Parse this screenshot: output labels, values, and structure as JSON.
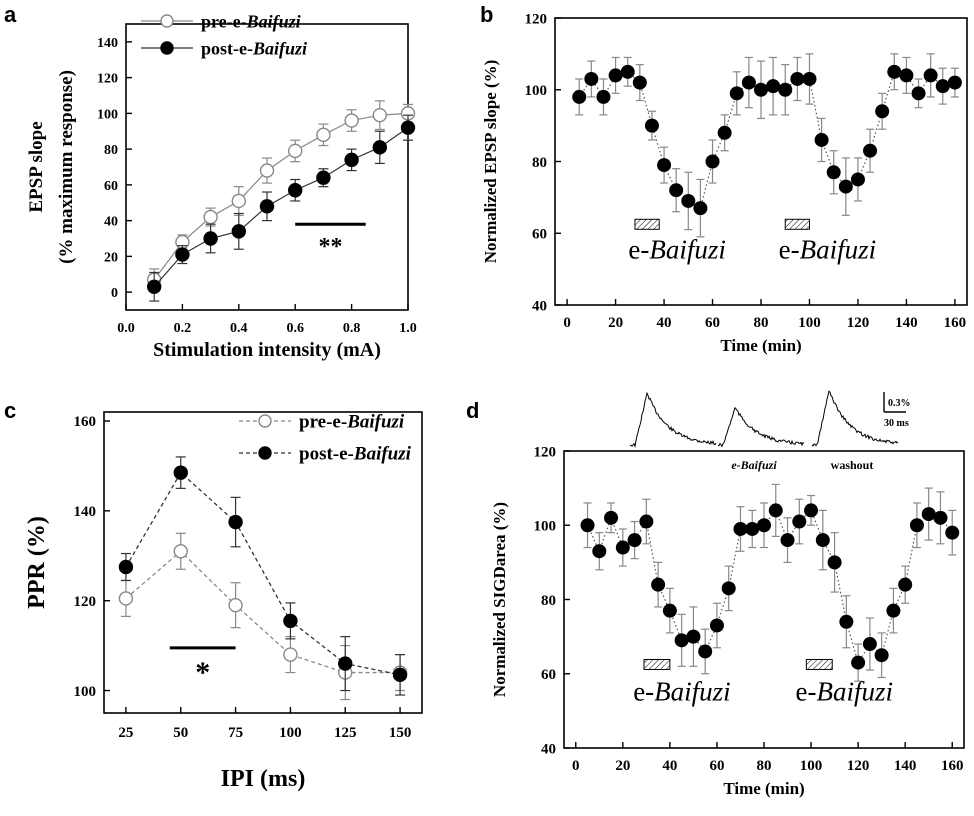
{
  "chart_data": [
    {
      "panel": "a",
      "type": "line",
      "xlabel": "Stimulation intensity (mA)",
      "ylabel_line1": "EPSP slope",
      "ylabel_line2": "(% maximum response)",
      "xlim": [
        0.0,
        1.0
      ],
      "ylim": [
        -10,
        150
      ],
      "xticks": [
        "0.0",
        "0.2",
        "0.4",
        "0.6",
        "0.8",
        "1.0"
      ],
      "xtick_values": [
        0.0,
        0.2,
        0.4,
        0.6,
        0.8,
        1.0
      ],
      "yticks": [
        "0",
        "20",
        "40",
        "60",
        "80",
        "100",
        "120",
        "140"
      ],
      "ytick_values": [
        0,
        20,
        40,
        60,
        80,
        100,
        120,
        140
      ],
      "legend_placement": "top-left",
      "annotation": "**",
      "x": [
        0.1,
        0.2,
        0.3,
        0.4,
        0.5,
        0.6,
        0.7,
        0.8,
        0.9,
        1.0
      ],
      "series": [
        {
          "name_prefix": "pre-e-",
          "name_italic": "Baifuzi",
          "marker": "open",
          "values": [
            7,
            28,
            42,
            51,
            68,
            79,
            88,
            96,
            99,
            100
          ],
          "errors": [
            6,
            4,
            5,
            8,
            7,
            6,
            6,
            6,
            8,
            5
          ]
        },
        {
          "name_prefix": "post-e-",
          "name_italic": "Baifuzi",
          "marker": "filled",
          "values": [
            3,
            21,
            30,
            34,
            48,
            57,
            64,
            74,
            81,
            92
          ],
          "errors": [
            8,
            5,
            8,
            10,
            8,
            6,
            5,
            6,
            9,
            7
          ]
        }
      ]
    },
    {
      "panel": "b",
      "type": "scatter",
      "xlabel": "Time (min)",
      "ylabel": "Normalized EPSP slope (%)",
      "xlim": [
        -5,
        165
      ],
      "ylim": [
        40,
        120
      ],
      "xticks": [
        "0",
        "20",
        "40",
        "60",
        "80",
        "100",
        "120",
        "140",
        "160"
      ],
      "xtick_values": [
        0,
        20,
        40,
        60,
        80,
        100,
        120,
        140,
        160
      ],
      "yticks": [
        "40",
        "60",
        "80",
        "100",
        "120"
      ],
      "ytick_values": [
        40,
        60,
        80,
        100,
        120
      ],
      "stim_label_prefix": "e-",
      "stim_label_italic": "Baifuzi",
      "stim_bars_x": [
        [
          28,
          38
        ],
        [
          90,
          100
        ]
      ],
      "stim_bar_y": 62.5,
      "x": [
        5,
        10,
        15,
        20,
        25,
        30,
        35,
        40,
        45,
        50,
        55,
        60,
        65,
        70,
        75,
        80,
        85,
        90,
        95,
        100,
        105,
        110,
        115,
        120,
        125,
        130,
        135,
        140,
        145,
        150,
        155,
        160
      ],
      "values": [
        98,
        103,
        98,
        104,
        105,
        102,
        90,
        79,
        72,
        69,
        67,
        80,
        88,
        99,
        102,
        100,
        101,
        100,
        103,
        103,
        86,
        77,
        73,
        75,
        83,
        94,
        105,
        104,
        99,
        104,
        101,
        102
      ],
      "errors": [
        5,
        5,
        5,
        5,
        4,
        5,
        4,
        5,
        6,
        8,
        8,
        6,
        5,
        6,
        7,
        8,
        8,
        7,
        6,
        7,
        6,
        6,
        8,
        6,
        6,
        5,
        5,
        5,
        4,
        6,
        5,
        4
      ]
    },
    {
      "panel": "c",
      "type": "line",
      "xlabel": "IPI (ms)",
      "ylabel": "PPR (%)",
      "xlim": [
        15,
        160
      ],
      "ylim": [
        95,
        162
      ],
      "xticks": [
        "25",
        "50",
        "75",
        "100",
        "125",
        "150"
      ],
      "xtick_values": [
        25,
        50,
        75,
        100,
        125,
        150
      ],
      "yticks": [
        "100",
        "120",
        "140",
        "160"
      ],
      "ytick_values": [
        100,
        120,
        140,
        160
      ],
      "legend_placement": "top-right",
      "annotation": "*",
      "x": [
        25,
        50,
        75,
        100,
        125,
        150
      ],
      "series": [
        {
          "name_prefix": "pre-e-",
          "name_italic": "Baifuzi",
          "marker": "open",
          "values": [
            120.5,
            131,
            119,
            108,
            104,
            104
          ],
          "errors": [
            4,
            4,
            5,
            4,
            6,
            4
          ]
        },
        {
          "name_prefix": "post-e-",
          "name_italic": "Baifuzi",
          "marker": "filled",
          "values": [
            127.5,
            148.5,
            137.5,
            115.5,
            106,
            103.5
          ],
          "errors": [
            3,
            3.5,
            5.5,
            4,
            6,
            4.5
          ]
        }
      ]
    },
    {
      "panel": "d",
      "type": "scatter",
      "xlabel": "Time (min)",
      "ylabel": "Normalized SIGDarea (%)",
      "xlim": [
        -5,
        165
      ],
      "ylim": [
        40,
        120
      ],
      "xticks": [
        "0",
        "20",
        "40",
        "60",
        "80",
        "100",
        "120",
        "140",
        "160"
      ],
      "xtick_values": [
        0,
        20,
        40,
        60,
        80,
        100,
        120,
        140,
        160
      ],
      "yticks": [
        "40",
        "60",
        "80",
        "100",
        "120"
      ],
      "ytick_values": [
        40,
        60,
        80,
        100,
        120
      ],
      "stim_label_prefix": "e-",
      "stim_label_italic": "Baifuzi",
      "stim_bars_x": [
        [
          29,
          40
        ],
        [
          98,
          109
        ]
      ],
      "stim_bar_y": 62.5,
      "x": [
        5,
        10,
        15,
        20,
        25,
        30,
        35,
        40,
        45,
        50,
        55,
        60,
        65,
        70,
        75,
        80,
        85,
        90,
        95,
        100,
        105,
        110,
        115,
        120,
        125,
        130,
        135,
        140,
        145,
        150,
        155,
        160
      ],
      "values": [
        100,
        93,
        102,
        94,
        96,
        101,
        84,
        77,
        69,
        70,
        66,
        73,
        83,
        99,
        99,
        100,
        104,
        96,
        101,
        104,
        96,
        90,
        74,
        63,
        68,
        65,
        77,
        84,
        100,
        103,
        102,
        98
      ],
      "errors": [
        6,
        5,
        4,
        5,
        5,
        6,
        6,
        6,
        7,
        8,
        6,
        6,
        6,
        6,
        5,
        6,
        7,
        6,
        6,
        4,
        8,
        8,
        7,
        5,
        7,
        6,
        6,
        5,
        6,
        7,
        7,
        6
      ],
      "inset": {
        "trace_label_2": "e-Baifuzi",
        "trace_label_3": "washout",
        "scale_amplitude": "0.3%",
        "scale_time": "30 ms",
        "peaks": [
          1.0,
          0.72,
          1.05
        ]
      }
    }
  ]
}
